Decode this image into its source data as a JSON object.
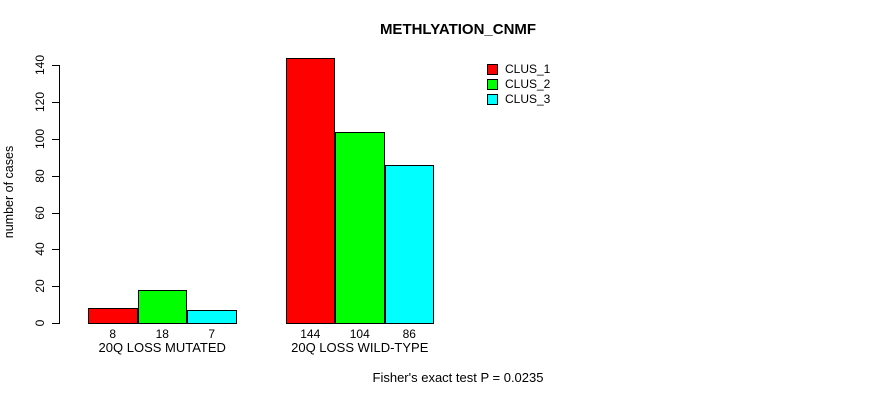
{
  "chart_data": {
    "type": "bar",
    "title": "METHLYATION_CNMF",
    "ylabel": "number of cases",
    "xlabel": "",
    "categories": [
      "20Q LOSS MUTATED",
      "20Q LOSS WILD-TYPE"
    ],
    "series": [
      {
        "name": "CLUS_1",
        "color": "#ff0000",
        "values": [
          8,
          144
        ]
      },
      {
        "name": "CLUS_2",
        "color": "#00ff00",
        "values": [
          18,
          104
        ]
      },
      {
        "name": "CLUS_3",
        "color": "#00ffff",
        "values": [
          7,
          86
        ]
      }
    ],
    "yticks": [
      0,
      20,
      40,
      60,
      80,
      100,
      120,
      140
    ],
    "ylim": [
      0,
      150
    ],
    "grid": false,
    "legend_position": "top-right",
    "legend_entries": [
      "CLUS_1",
      "CLUS_2",
      "CLUS_3"
    ],
    "bar_value_labels": [
      [
        8,
        18,
        7
      ],
      [
        144,
        104,
        86
      ]
    ],
    "annotation": "Fisher's exact test P = 0.0235",
    "background_color": "#ffffff",
    "axis_color": "#000000"
  }
}
